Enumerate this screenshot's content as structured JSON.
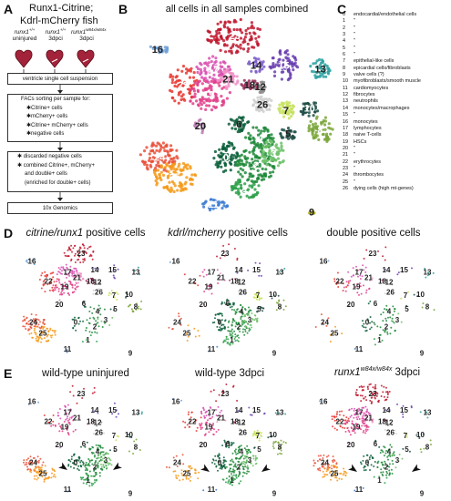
{
  "panelA": {
    "letter": "A",
    "title_line1": "Runx1-Citrine;",
    "title_line2": "Kdrl-mCherry fish",
    "fish": [
      {
        "genotype": "runx1",
        "sup": "+/+",
        "condition": "uninjured"
      },
      {
        "genotype": "runx1",
        "sup": "+/+",
        "condition": "3dpci"
      },
      {
        "genotype": "runx1",
        "sup": "w84x/w84x",
        "condition": "3dpci"
      }
    ],
    "step1": "ventricle single cell suspension",
    "step2_lines": [
      "FACs sorting per sample for:",
      "✱Citrine+ cells",
      "✱mCherry+ cells",
      "✱Citrine+ mCherry+ cells",
      "✱negative cells"
    ],
    "step3_lines": [
      "✱ discarded negative cells",
      "✱ combined Citrine+, mCherry+",
      "and double+ cells",
      "(enriched for double+ cells)"
    ],
    "step4": "10x Genomics"
  },
  "panelB": {
    "letter": "B",
    "title": "all cells in all samples combined"
  },
  "panelC": {
    "letter": "C",
    "legend": [
      {
        "num": "0",
        "label": "endocardial/endothelial cells"
      },
      {
        "num": "1",
        "label": "\""
      },
      {
        "num": "2",
        "label": "\""
      },
      {
        "num": "3",
        "label": "\""
      },
      {
        "num": "4",
        "label": "\""
      },
      {
        "num": "5",
        "label": "\""
      },
      {
        "num": "6",
        "label": "\""
      },
      {
        "num": "7",
        "label": "epithelial-like cells"
      },
      {
        "num": "8",
        "label": "epicardial cells/fibroblasts"
      },
      {
        "num": "9",
        "label": "valve cells (?)"
      },
      {
        "num": "10",
        "label": "myofibroblasts/smooth muscle"
      },
      {
        "num": "11",
        "label": "cardiomyocytes"
      },
      {
        "num": "12",
        "label": "fibrocytes"
      },
      {
        "num": "13",
        "label": "neutrophils"
      },
      {
        "num": "14",
        "label": "monocytes/macrophages"
      },
      {
        "num": "15",
        "label": "\""
      },
      {
        "num": "16",
        "label": "monocytes"
      },
      {
        "num": "17",
        "label": "lymphocytes"
      },
      {
        "num": "18",
        "label": "naive T-cells"
      },
      {
        "num": "19",
        "label": "HSCs"
      },
      {
        "num": "20",
        "label": "\""
      },
      {
        "num": "21",
        "label": "\""
      },
      {
        "num": "22",
        "label": "erythrocytes"
      },
      {
        "num": "23",
        "label": "\""
      },
      {
        "num": "24",
        "label": "thrombocytes"
      },
      {
        "num": "25",
        "label": "\""
      },
      {
        "num": "26",
        "label": "dying cells (high mt-genes)"
      }
    ]
  },
  "panelD": {
    "letter": "D",
    "titles": [
      {
        "italic": "citrine/runx1",
        "rest": " positive cells"
      },
      {
        "italic": "kdrl/mcherry",
        "rest": " positive cells"
      },
      {
        "italic": "",
        "rest": "double positive cells"
      }
    ]
  },
  "panelE": {
    "letter": "E",
    "titles": [
      {
        "main": "wild-type uninjured",
        "sup": ""
      },
      {
        "main": "wild-type 3dpci",
        "sup": ""
      },
      {
        "main": "runx1",
        "sup": "w84x/w84x",
        "tail": " 3dpci"
      }
    ]
  },
  "colors": {
    "endothelial": "#1f8a3a",
    "endothelial_dark": "#0b5e3a",
    "endothelial_light": "#6dc26a",
    "epithelial": "#c6e05a",
    "epicardial": "#7aa63a",
    "myofib": "#1d4f47",
    "valve": "#b5b52a",
    "cardiomyocyte": "#3d7bd0",
    "neutrophil": "#2aa0a0",
    "macrophage": "#6a3fb0",
    "monocyte": "#6fa0d8",
    "lymphocyte": "#d94fb0",
    "hsc": "#e0408a",
    "erythrocyte": "#c0182e",
    "erythrocyte2": "#e8362f",
    "thrombocyte": "#e9503a",
    "thrombocyte2": "#f59a1a",
    "fibrocyte": "#8c8c8c",
    "dying": "#cfcfcf"
  }
}
